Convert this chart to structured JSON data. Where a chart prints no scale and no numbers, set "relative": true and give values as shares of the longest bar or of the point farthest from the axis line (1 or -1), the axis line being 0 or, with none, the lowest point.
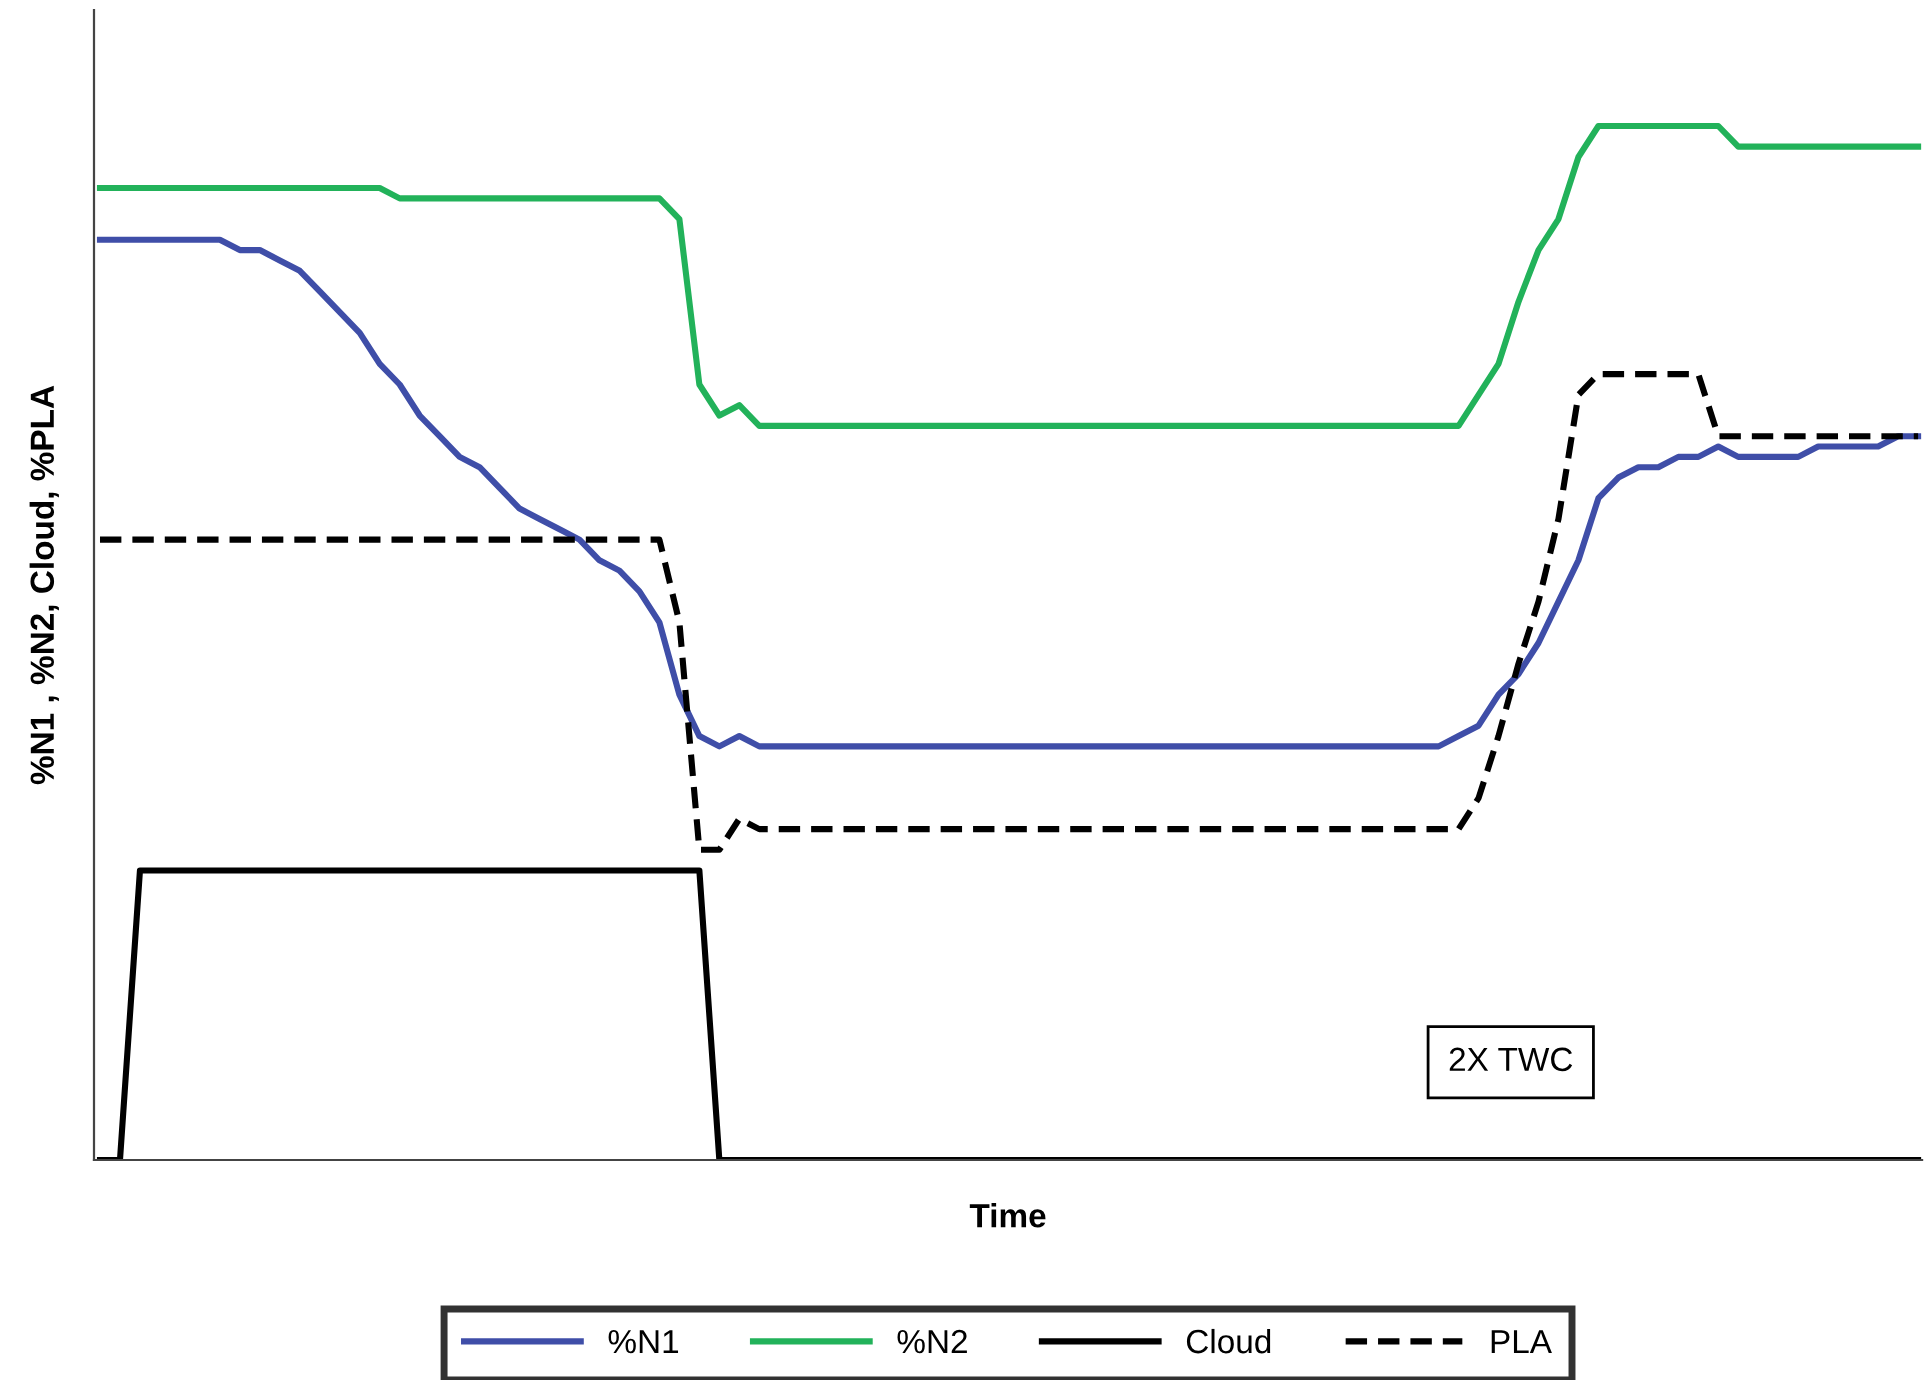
{
  "chart_data": {
    "type": "line",
    "relative": true,
    "xlabel": "Time",
    "ylabel": "%N1 , %N2, Cloud, %PLA",
    "legend": "bottom",
    "grid": false,
    "marker": "none",
    "annotations": [
      "2X TWC"
    ],
    "categories": [
      null,
      null,
      null,
      null,
      null,
      null,
      null,
      null,
      null,
      null,
      null,
      null,
      null,
      null,
      null,
      null,
      null,
      null,
      null,
      null,
      null,
      null,
      null,
      null,
      null,
      null,
      null,
      null,
      null,
      null,
      null,
      null,
      null,
      null,
      null,
      null,
      null,
      null,
      null,
      null,
      null,
      null,
      null,
      null,
      null,
      null,
      null,
      null,
      null,
      null,
      null,
      null,
      null,
      null,
      null,
      null,
      null,
      null,
      null,
      null,
      null,
      null,
      null,
      null,
      null,
      null,
      null,
      null,
      null,
      null,
      null,
      null,
      null,
      null,
      null,
      null,
      null,
      null,
      null,
      null,
      null,
      null,
      null,
      null,
      null,
      null,
      null,
      null,
      null,
      null,
      null,
      null
    ],
    "series": [
      {
        "name": "%N1",
        "color": "#3f4ea8",
        "line_style": "solid",
        "values": [
          0.89,
          0.89,
          0.89,
          0.89,
          0.89,
          0.89,
          0.89,
          0.88,
          0.88,
          0.87,
          0.86,
          0.84,
          0.82,
          0.8,
          0.77,
          0.75,
          0.72,
          0.7,
          0.68,
          0.67,
          0.65,
          0.63,
          0.62,
          0.61,
          0.6,
          0.58,
          0.57,
          0.55,
          0.52,
          0.45,
          0.41,
          0.4,
          0.41,
          0.4,
          0.4,
          0.4,
          0.4,
          0.4,
          0.4,
          0.4,
          0.4,
          0.4,
          0.4,
          0.4,
          0.4,
          0.4,
          0.4,
          0.4,
          0.4,
          0.4,
          0.4,
          0.4,
          0.4,
          0.4,
          0.4,
          0.4,
          0.4,
          0.4,
          0.4,
          0.4,
          0.4,
          0.4,
          0.4,
          0.4,
          0.4,
          0.4,
          0.4,
          0.4,
          0.41,
          0.42,
          0.45,
          0.47,
          0.5,
          0.54,
          0.58,
          0.64,
          0.66,
          0.67,
          0.67,
          0.68,
          0.68,
          0.69,
          0.68,
          0.68,
          0.68,
          0.68,
          0.69,
          0.69,
          0.69,
          0.69,
          0.7,
          0.7
        ]
      },
      {
        "name": "%N2",
        "color": "#22b25a",
        "line_style": "solid",
        "values": [
          0.94,
          0.94,
          0.94,
          0.94,
          0.94,
          0.94,
          0.94,
          0.94,
          0.94,
          0.94,
          0.94,
          0.94,
          0.94,
          0.94,
          0.94,
          0.93,
          0.93,
          0.93,
          0.93,
          0.93,
          0.93,
          0.93,
          0.93,
          0.93,
          0.93,
          0.93,
          0.93,
          0.93,
          0.93,
          0.91,
          0.75,
          0.72,
          0.73,
          0.71,
          0.71,
          0.71,
          0.71,
          0.71,
          0.71,
          0.71,
          0.71,
          0.71,
          0.71,
          0.71,
          0.71,
          0.71,
          0.71,
          0.71,
          0.71,
          0.71,
          0.71,
          0.71,
          0.71,
          0.71,
          0.71,
          0.71,
          0.71,
          0.71,
          0.71,
          0.71,
          0.71,
          0.71,
          0.71,
          0.71,
          0.71,
          0.71,
          0.71,
          0.71,
          0.71,
          0.74,
          0.77,
          0.83,
          0.88,
          0.91,
          0.97,
          1.0,
          1.0,
          1.0,
          1.0,
          1.0,
          1.0,
          1.0,
          0.98,
          0.98,
          0.98,
          0.98,
          0.98,
          0.98,
          0.98,
          0.98,
          0.98,
          0.98
        ]
      },
      {
        "name": "Cloud",
        "color": "#000000",
        "line_style": "solid",
        "values": [
          0,
          0,
          0.28,
          0.28,
          0.28,
          0.28,
          0.28,
          0.28,
          0.28,
          0.28,
          0.28,
          0.28,
          0.28,
          0.28,
          0.28,
          0.28,
          0.28,
          0.28,
          0.28,
          0.28,
          0.28,
          0.28,
          0.28,
          0.28,
          0.28,
          0.28,
          0.28,
          0.28,
          0.28,
          0.28,
          0.28,
          0,
          0,
          0,
          0,
          0,
          0,
          0,
          0,
          0,
          0,
          0,
          0,
          0,
          0,
          0,
          0,
          0,
          0,
          0,
          0,
          0,
          0,
          0,
          0,
          0,
          0,
          0,
          0,
          0,
          0,
          0,
          0,
          0,
          0,
          0,
          0,
          0,
          0,
          0,
          0,
          0,
          0,
          0,
          0,
          0,
          0,
          0,
          0,
          0,
          0,
          0,
          0,
          0,
          0,
          0,
          0,
          0,
          0,
          0,
          0,
          0
        ]
      },
      {
        "name": "PLA",
        "color": "#000000",
        "line_style": "dashed",
        "values": [
          0.6,
          0.6,
          0.6,
          0.6,
          0.6,
          0.6,
          0.6,
          0.6,
          0.6,
          0.6,
          0.6,
          0.6,
          0.6,
          0.6,
          0.6,
          0.6,
          0.6,
          0.6,
          0.6,
          0.6,
          0.6,
          0.6,
          0.6,
          0.6,
          0.6,
          0.6,
          0.6,
          0.6,
          0.6,
          0.52,
          0.3,
          0.3,
          0.33,
          0.32,
          0.32,
          0.32,
          0.32,
          0.32,
          0.32,
          0.32,
          0.32,
          0.32,
          0.32,
          0.32,
          0.32,
          0.32,
          0.32,
          0.32,
          0.32,
          0.32,
          0.32,
          0.32,
          0.32,
          0.32,
          0.32,
          0.32,
          0.32,
          0.32,
          0.32,
          0.32,
          0.32,
          0.32,
          0.32,
          0.32,
          0.32,
          0.32,
          0.32,
          0.32,
          0.32,
          0.35,
          0.41,
          0.48,
          0.54,
          0.62,
          0.74,
          0.76,
          0.76,
          0.76,
          0.76,
          0.76,
          0.76,
          0.7,
          0.7,
          0.7,
          0.7,
          0.7,
          0.7,
          0.7,
          0.7,
          0.7,
          0.7,
          0.7
        ]
      }
    ]
  }
}
